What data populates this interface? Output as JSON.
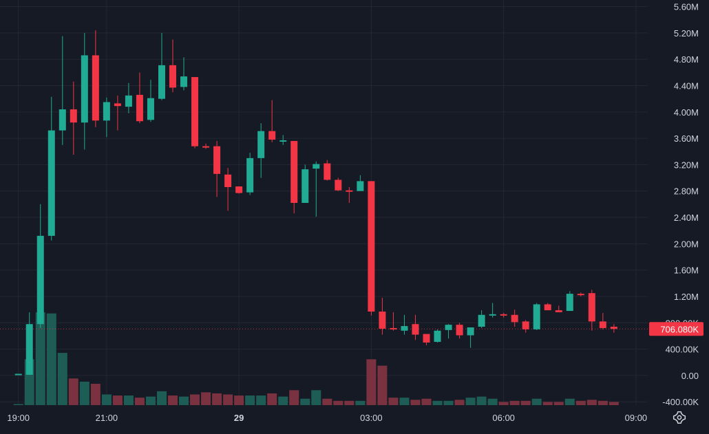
{
  "colors": {
    "background": "#161a25",
    "grid": "#242733",
    "up": "#22ab94",
    "down": "#f23645",
    "up_volume": "#1e5d55",
    "down_volume": "#7a3240",
    "axis_text": "#d1d4dc",
    "price_line": "#f23645"
  },
  "icons": {
    "settings": "gear-icon"
  },
  "chart_data": {
    "type": "candlestick",
    "title": "",
    "current_price": 706080,
    "current_price_label": "706.080K",
    "y_axis": {
      "ylim": [
        -450000,
        5700000
      ],
      "tick_values": [
        -400000,
        0,
        400000,
        800000,
        1200000,
        1600000,
        2000000,
        2400000,
        2800000,
        3200000,
        3600000,
        4000000,
        4400000,
        4800000,
        5200000,
        5600000
      ],
      "tick_labels": [
        "-400.00K",
        "0.00",
        "400.00K",
        "800.00K",
        "1.20M",
        "1.60M",
        "2.00M",
        "2.40M",
        "2.80M",
        "3.20M",
        "3.60M",
        "4.00M",
        "4.40M",
        "4.80M",
        "5.20M",
        "5.60M"
      ]
    },
    "x_axis": {
      "unit": "minutes after 19:00 on day 28",
      "xlim": [
        -25,
        856
      ],
      "tick_values": [
        0,
        120,
        300,
        480,
        660,
        840
      ],
      "tick_labels": [
        "19:00",
        "21:00",
        "29",
        "03:00",
        "06:00",
        "09:00"
      ],
      "bold": [
        false,
        false,
        true,
        false,
        false,
        false
      ]
    },
    "grid": true,
    "volume_visible": true,
    "candle_interval_minutes": 15,
    "candles": [
      {
        "t": 0,
        "o": 20000,
        "h": 25000,
        "l": 15000,
        "c": 25000,
        "v": 0.01
      },
      {
        "t": 15,
        "o": 10000,
        "h": 960000,
        "l": 10000,
        "c": 780000,
        "v": 0.43
      },
      {
        "t": 30,
        "o": 780000,
        "h": 2600000,
        "l": 720000,
        "c": 2120000,
        "v": 0.87
      },
      {
        "t": 45,
        "o": 2120000,
        "h": 4230000,
        "l": 2050000,
        "c": 3720000,
        "v": 0.86
      },
      {
        "t": 60,
        "o": 3720000,
        "h": 5150000,
        "l": 3500000,
        "c": 4040000,
        "v": 0.49
      },
      {
        "t": 75,
        "o": 4040000,
        "h": 4460000,
        "l": 3350000,
        "c": 3840000,
        "v": 0.25
      },
      {
        "t": 90,
        "o": 3840000,
        "h": 5200000,
        "l": 3430000,
        "c": 4860000,
        "v": 0.22
      },
      {
        "t": 105,
        "o": 4860000,
        "h": 5240000,
        "l": 3770000,
        "c": 3870000,
        "v": 0.2
      },
      {
        "t": 120,
        "o": 3870000,
        "h": 4220000,
        "l": 3620000,
        "c": 4150000,
        "v": 0.1
      },
      {
        "t": 135,
        "o": 4130000,
        "h": 4250000,
        "l": 3720000,
        "c": 4090000,
        "v": 0.09
      },
      {
        "t": 150,
        "o": 4080000,
        "h": 4440000,
        "l": 3980000,
        "c": 4250000,
        "v": 0.09
      },
      {
        "t": 165,
        "o": 4260000,
        "h": 4600000,
        "l": 3830000,
        "c": 3860000,
        "v": 0.07
      },
      {
        "t": 180,
        "o": 3880000,
        "h": 4490000,
        "l": 3850000,
        "c": 4210000,
        "v": 0.08
      },
      {
        "t": 195,
        "o": 4200000,
        "h": 5200000,
        "l": 4180000,
        "c": 4710000,
        "v": 0.13
      },
      {
        "t": 210,
        "o": 4710000,
        "h": 5100000,
        "l": 4300000,
        "c": 4370000,
        "v": 0.09
      },
      {
        "t": 225,
        "o": 4380000,
        "h": 4830000,
        "l": 4330000,
        "c": 4540000,
        "v": 0.08
      },
      {
        "t": 240,
        "o": 4530000,
        "h": 4530000,
        "l": 3450000,
        "c": 3480000,
        "v": 0.1
      },
      {
        "t": 255,
        "o": 3480000,
        "h": 3520000,
        "l": 3440000,
        "c": 3470000,
        "v": 0.12
      },
      {
        "t": 270,
        "o": 3480000,
        "h": 3560000,
        "l": 2710000,
        "c": 3060000,
        "v": 0.11
      },
      {
        "t": 285,
        "o": 3050000,
        "h": 3150000,
        "l": 2500000,
        "c": 2860000,
        "v": 0.1
      },
      {
        "t": 300,
        "o": 2870000,
        "h": 2860000,
        "l": 2760000,
        "c": 2770000,
        "v": 0.09
      },
      {
        "t": 315,
        "o": 2780000,
        "h": 3380000,
        "l": 2740000,
        "c": 3300000,
        "v": 0.09
      },
      {
        "t": 330,
        "o": 3300000,
        "h": 3830000,
        "l": 3000000,
        "c": 3710000,
        "v": 0.09
      },
      {
        "t": 345,
        "o": 3710000,
        "h": 4180000,
        "l": 3540000,
        "c": 3580000,
        "v": 0.11
      },
      {
        "t": 360,
        "o": 3570000,
        "h": 3650000,
        "l": 3500000,
        "c": 3570000,
        "v": 0.08
      },
      {
        "t": 375,
        "o": 3560000,
        "h": 3560000,
        "l": 2460000,
        "c": 2620000,
        "v": 0.14
      },
      {
        "t": 390,
        "o": 2620000,
        "h": 3200000,
        "l": 2620000,
        "c": 3130000,
        "v": 0.06
      },
      {
        "t": 405,
        "o": 3140000,
        "h": 3250000,
        "l": 2410000,
        "c": 3210000,
        "v": 0.14
      },
      {
        "t": 420,
        "o": 3220000,
        "h": 3270000,
        "l": 2960000,
        "c": 2970000,
        "v": 0.06
      },
      {
        "t": 435,
        "o": 2970000,
        "h": 3000000,
        "l": 2800000,
        "c": 2810000,
        "v": 0.04
      },
      {
        "t": 450,
        "o": 2810000,
        "h": 2860000,
        "l": 2620000,
        "c": 2800000,
        "v": 0.04
      },
      {
        "t": 465,
        "o": 2800000,
        "h": 3040000,
        "l": 2800000,
        "c": 2950000,
        "v": 0.04
      },
      {
        "t": 480,
        "o": 2950000,
        "h": 2950000,
        "l": 910000,
        "c": 970000,
        "v": 0.43
      },
      {
        "t": 495,
        "o": 970000,
        "h": 1180000,
        "l": 620000,
        "c": 710000,
        "v": 0.37
      },
      {
        "t": 510,
        "o": 720000,
        "h": 960000,
        "l": 680000,
        "c": 700000,
        "v": 0.07
      },
      {
        "t": 525,
        "o": 680000,
        "h": 920000,
        "l": 620000,
        "c": 750000,
        "v": 0.07
      },
      {
        "t": 540,
        "o": 780000,
        "h": 920000,
        "l": 540000,
        "c": 620000,
        "v": 0.05
      },
      {
        "t": 555,
        "o": 630000,
        "h": 630000,
        "l": 460000,
        "c": 500000,
        "v": 0.06
      },
      {
        "t": 570,
        "o": 510000,
        "h": 700000,
        "l": 500000,
        "c": 680000,
        "v": 0.04
      },
      {
        "t": 585,
        "o": 690000,
        "h": 780000,
        "l": 560000,
        "c": 770000,
        "v": 0.04
      },
      {
        "t": 600,
        "o": 770000,
        "h": 800000,
        "l": 560000,
        "c": 610000,
        "v": 0.05
      },
      {
        "t": 615,
        "o": 610000,
        "h": 720000,
        "l": 420000,
        "c": 730000,
        "v": 0.07
      },
      {
        "t": 630,
        "o": 740000,
        "h": 990000,
        "l": 720000,
        "c": 920000,
        "v": 0.08
      },
      {
        "t": 645,
        "o": 910000,
        "h": 1100000,
        "l": 880000,
        "c": 930000,
        "v": 0.06
      },
      {
        "t": 660,
        "o": 930000,
        "h": 950000,
        "l": 880000,
        "c": 920000,
        "v": 0.03
      },
      {
        "t": 675,
        "o": 920000,
        "h": 1000000,
        "l": 740000,
        "c": 810000,
        "v": 0.04
      },
      {
        "t": 690,
        "o": 820000,
        "h": 840000,
        "l": 650000,
        "c": 700000,
        "v": 0.04
      },
      {
        "t": 705,
        "o": 700000,
        "h": 1100000,
        "l": 690000,
        "c": 1080000,
        "v": 0.06
      },
      {
        "t": 720,
        "o": 1080000,
        "h": 1100000,
        "l": 990000,
        "c": 990000,
        "v": 0.03
      },
      {
        "t": 735,
        "o": 990000,
        "h": 1060000,
        "l": 960000,
        "c": 960000,
        "v": 0.03
      },
      {
        "t": 750,
        "o": 980000,
        "h": 1280000,
        "l": 980000,
        "c": 1240000,
        "v": 0.06
      },
      {
        "t": 765,
        "o": 1240000,
        "h": 1260000,
        "l": 1200000,
        "c": 1220000,
        "v": 0.04
      },
      {
        "t": 780,
        "o": 1250000,
        "h": 1300000,
        "l": 680000,
        "c": 820000,
        "v": 0.05
      },
      {
        "t": 795,
        "o": 820000,
        "h": 950000,
        "l": 700000,
        "c": 720000,
        "v": 0.04
      },
      {
        "t": 810,
        "o": 740000,
        "h": 780000,
        "l": 650000,
        "c": 706080,
        "v": 0.03
      }
    ]
  }
}
